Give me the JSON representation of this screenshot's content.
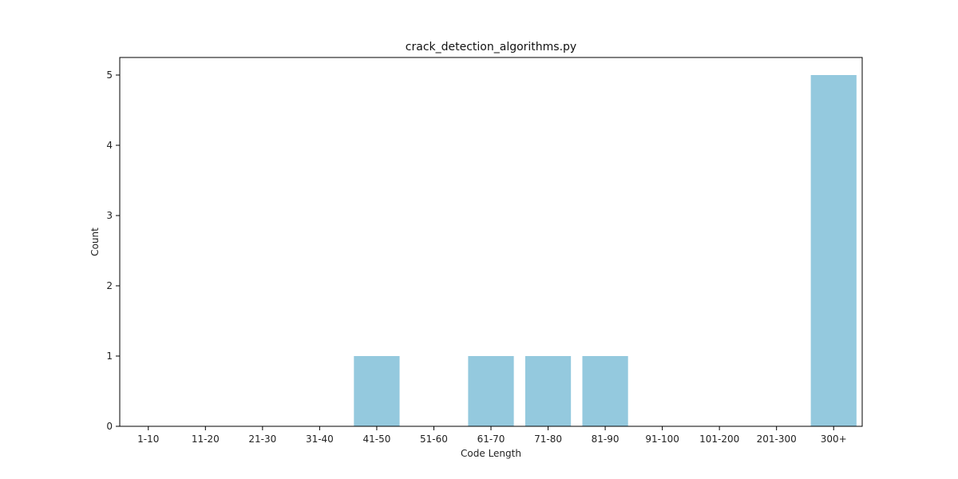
{
  "chart_data": {
    "type": "bar",
    "title": "crack_detection_algorithms.py",
    "xlabel": "Code Length",
    "ylabel": "Count",
    "categories": [
      "1-10",
      "11-20",
      "21-30",
      "31-40",
      "41-50",
      "51-60",
      "61-70",
      "71-80",
      "81-90",
      "91-100",
      "101-200",
      "201-300",
      "300+"
    ],
    "values": [
      0,
      0,
      0,
      0,
      1,
      0,
      1,
      1,
      1,
      0,
      0,
      0,
      5
    ],
    "ylim": [
      0,
      5.25
    ],
    "yticks": [
      0,
      1,
      2,
      3,
      4,
      5
    ],
    "grid": false,
    "colors": {
      "bar": "#94c9de",
      "axis": "#000000"
    }
  }
}
